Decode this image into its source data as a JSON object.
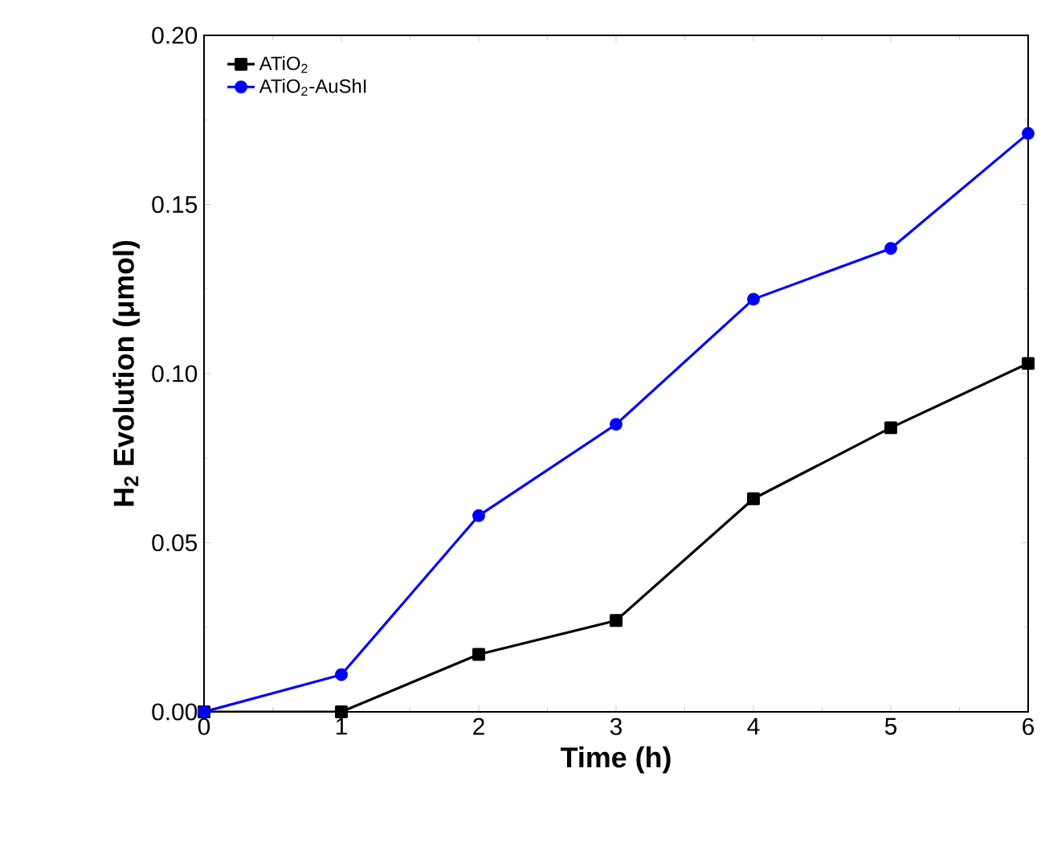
{
  "chart_data": {
    "type": "line",
    "xlabel": "Time (h)",
    "ylabel": "H$_{2}$ Evolution (μmol)",
    "x": [
      0,
      1,
      2,
      3,
      4,
      5,
      6
    ],
    "series": [
      {
        "name": "ATiO$_{2}$",
        "color": "#000000",
        "marker": "square",
        "values": [
          0,
          0,
          0.017,
          0.027,
          0.063,
          0.084,
          0.103
        ]
      },
      {
        "name": "ATiO$_{2}$-AuShI",
        "color": "#0000ff",
        "marker": "circle",
        "values": [
          0,
          0.011,
          0.058,
          0.085,
          0.122,
          0.137,
          0.171
        ]
      }
    ],
    "xlim": [
      0,
      6
    ],
    "ylim": [
      0,
      0.2
    ],
    "xticks": [
      0,
      1,
      2,
      3,
      4,
      5,
      6
    ],
    "yticks": [
      {
        "value": 0,
        "label": "0.00"
      },
      {
        "value": 0.05,
        "label": "0.05"
      },
      {
        "value": 0.1,
        "label": "0.10"
      },
      {
        "value": 0.15,
        "label": "0.15"
      },
      {
        "value": 0.2,
        "label": "0.20"
      }
    ],
    "legend": "top left",
    "grid": false,
    "line_style": "solid"
  }
}
